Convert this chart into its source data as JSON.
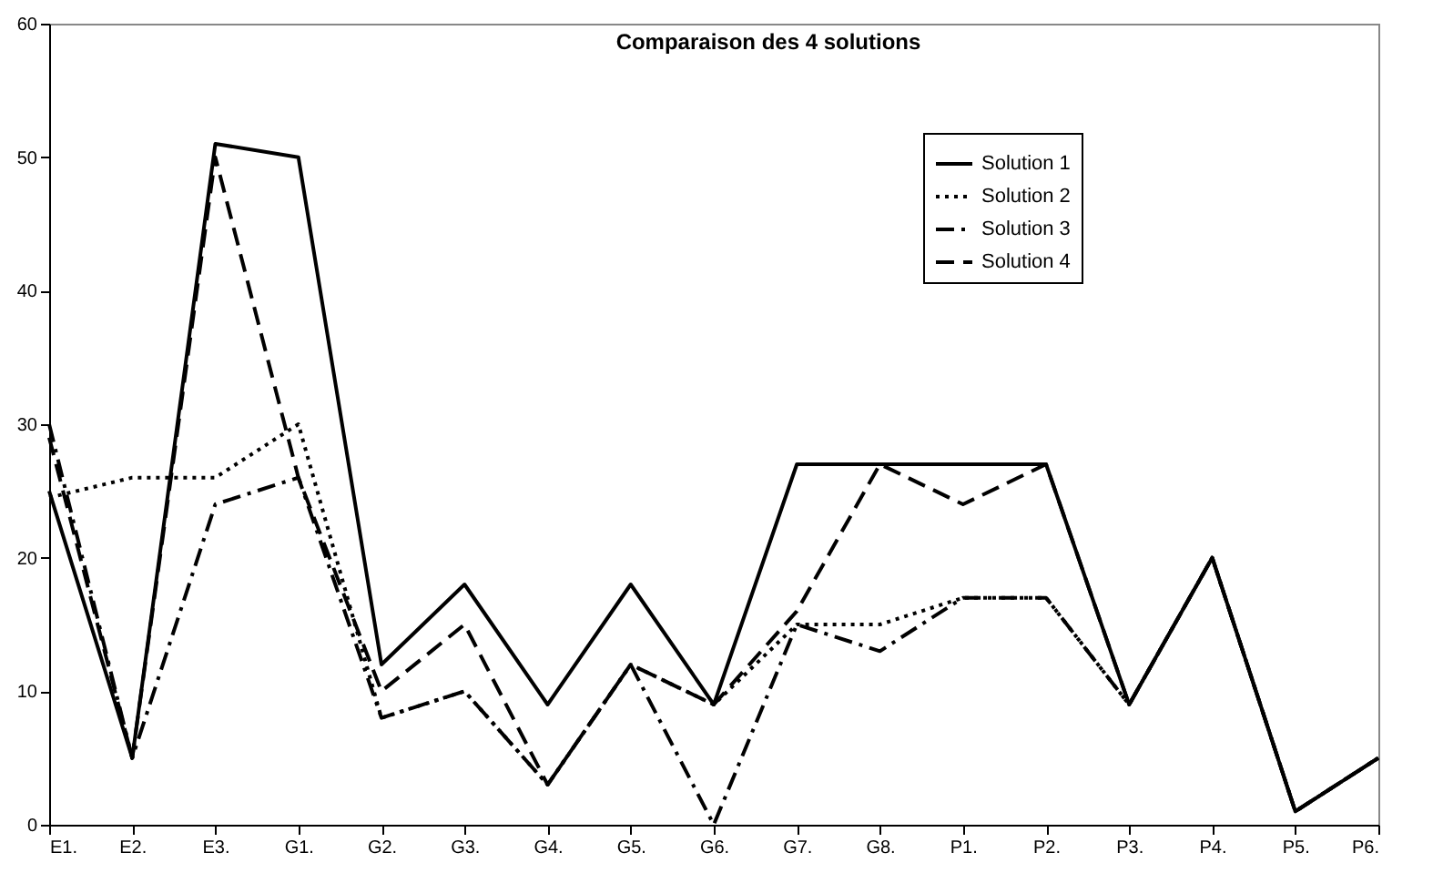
{
  "chart_data": {
    "type": "line",
    "title": "Comparaison des 4 solutions",
    "categories": [
      "E1.",
      "E2.",
      "E3.",
      "G1.",
      "G2.",
      "G3.",
      "G4.",
      "G5.",
      "G6.",
      "G7.",
      "G8.",
      "P1.",
      "P2.",
      "P3.",
      "P4.",
      "P5.",
      "P6."
    ],
    "series": [
      {
        "name": "Solution 1",
        "color": "#000000",
        "line_style": "solid",
        "values": [
          25,
          5,
          51,
          50,
          12,
          18,
          9,
          18,
          9,
          27,
          27,
          27,
          27,
          9,
          20,
          1,
          5
        ]
      },
      {
        "name": "Solution 2",
        "color": "#000000",
        "line_style": "dotted",
        "values": [
          24.5,
          26,
          26,
          30,
          8,
          10,
          3,
          12,
          9,
          15,
          15,
          17,
          17,
          9,
          20,
          1,
          5
        ]
      },
      {
        "name": "Solution 3",
        "color": "#000000",
        "line_style": "dashdot",
        "values": [
          30,
          5,
          24,
          26,
          8,
          10,
          3,
          12,
          0,
          15,
          13,
          17,
          17,
          9,
          20,
          1,
          5
        ]
      },
      {
        "name": "Solution 4",
        "color": "#000000",
        "line_style": "dashed",
        "values": [
          29,
          5,
          50,
          26,
          10,
          15,
          3,
          12,
          9,
          16,
          27,
          24,
          27,
          9,
          20,
          1,
          5
        ]
      }
    ],
    "ylim": [
      0,
      60
    ],
    "yticks": [
      0,
      10,
      20,
      30,
      40,
      50,
      60
    ],
    "grid": false,
    "legend": "top right"
  }
}
